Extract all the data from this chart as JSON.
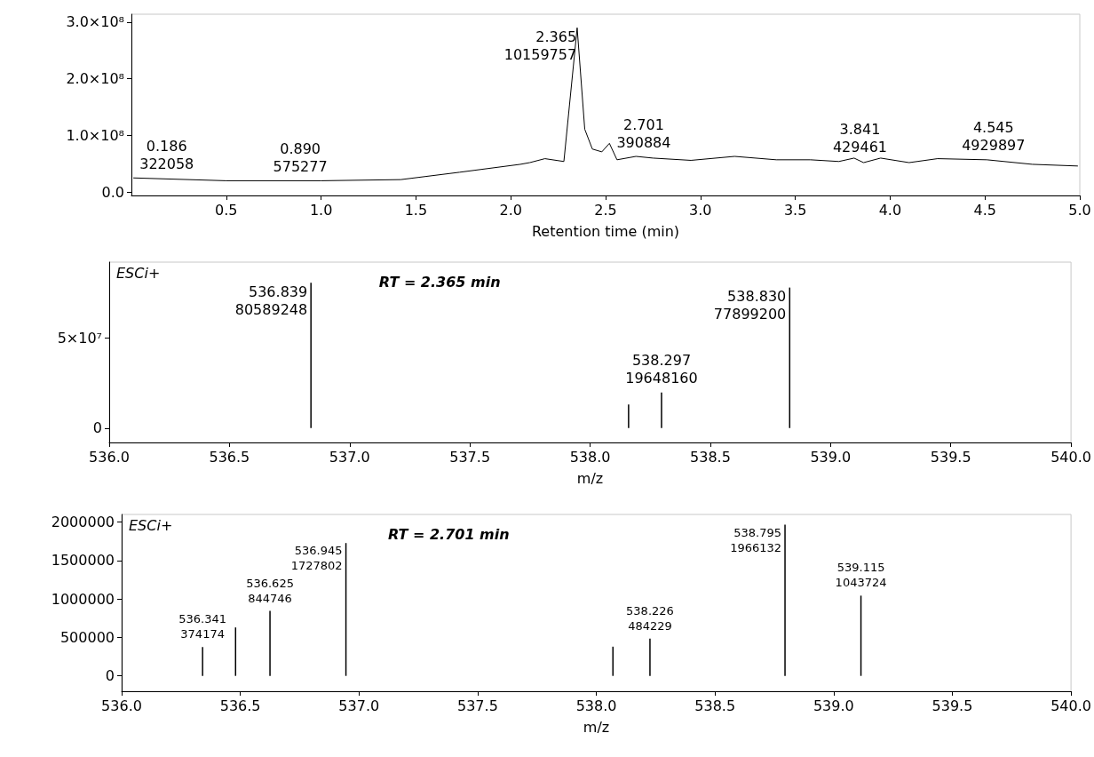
{
  "chart_data": [
    {
      "type": "line",
      "xlabel": "Retention time (min)",
      "color": "#000000",
      "marker": "none",
      "x": [
        0.01,
        0.5,
        1.0,
        1.42,
        1.73,
        2.05,
        2.1,
        2.18,
        2.28,
        2.35,
        2.39,
        2.43,
        2.48,
        2.52,
        2.56,
        2.66,
        2.75,
        2.95,
        3.18,
        3.4,
        3.58,
        3.73,
        3.81,
        3.86,
        3.95,
        4.1,
        4.25,
        4.51,
        4.75,
        4.99
      ],
      "values": [
        25000000,
        20000000,
        20000000,
        22000000,
        35000000,
        49000000,
        52000000,
        59000000,
        54000000,
        290000000,
        111000000,
        76000000,
        71000000,
        86000000,
        57000000,
        63000000,
        60000000,
        56000000,
        63000000,
        57000000,
        57000000,
        54000000,
        60000000,
        52000000,
        60000000,
        52000000,
        59000000,
        57000000,
        49000000,
        46000000
      ],
      "xlim": [
        0,
        5.0
      ],
      "xticks": [
        0.5,
        {
          "value": 1,
          "label": "1.0"
        },
        1.5,
        {
          "value": 2,
          "label": "2.0"
        },
        2.5,
        {
          "value": 3,
          "label": "3.0"
        },
        3.5,
        {
          "value": 4,
          "label": "4.0"
        },
        4.5,
        {
          "value": 5,
          "label": "5.0"
        }
      ],
      "ylim": [
        -6000000,
        314000000
      ],
      "yticks": [
        {
          "value": 0,
          "label": "0.0"
        },
        {
          "value": 100000000,
          "label": "1.0×10⁸"
        },
        {
          "value": 200000000,
          "label": "2.0×10⁸"
        },
        {
          "value": 300000000,
          "label": "3.0×10⁸"
        }
      ],
      "annotations": [
        {
          "text": "0.186\n322058",
          "x": 0.186,
          "y": 25000000
        },
        {
          "text": "0.890\n575277",
          "x": 0.89,
          "y": 20000000
        },
        {
          "text": "2.365\n10159757",
          "x": 2.365,
          "y": 290000000
        },
        {
          "text": "2.701\n390884",
          "x": 2.701,
          "y": 62000000
        },
        {
          "text": "3.841\n429461",
          "x": 3.841,
          "y": 54000000
        },
        {
          "text": "4.545\n4929897",
          "x": 4.545,
          "y": 57000000
        }
      ]
    },
    {
      "type": "bar",
      "xlabel": "m/z",
      "color": "#000000",
      "x": [
        536.839,
        538.16,
        538.297,
        538.83
      ],
      "values": [
        80589248,
        13000000,
        19648160,
        77899200
      ],
      "xlim": [
        536.0,
        540.0
      ],
      "xticks": [
        {
          "value": 536,
          "label": "536.0"
        },
        536.5,
        {
          "value": 537,
          "label": "537.0"
        },
        537.5,
        {
          "value": 538,
          "label": "538.0"
        },
        538.5,
        {
          "value": 539,
          "label": "539.0"
        },
        539.5,
        {
          "value": 540,
          "label": "540.0"
        }
      ],
      "ylim": [
        -8000000,
        92000000
      ],
      "yticks": [
        0,
        {
          "value": 50000000,
          "label": "5×10⁷"
        }
      ],
      "annotations": [
        "ESCi+",
        "RT = 2.365 min",
        {
          "text": "536.839\n80589248",
          "x": 536.839,
          "y": 80589248
        },
        {
          "text": "538.297\n19648160",
          "x": 538.297,
          "y": 19648160
        },
        {
          "text": "538.830\n77899200",
          "x": 538.83,
          "y": 77899200
        }
      ]
    },
    {
      "type": "bar",
      "xlabel": "m/z",
      "color": "#000000",
      "x": [
        536.341,
        536.48,
        536.625,
        536.945,
        538.07,
        538.226,
        538.795,
        539.115
      ],
      "values": [
        374174,
        630000,
        844746,
        1727802,
        380000,
        484229,
        1966132,
        1043724
      ],
      "xlim": [
        536.0,
        540.0
      ],
      "xticks": [
        {
          "value": 536,
          "label": "536.0"
        },
        536.5,
        {
          "value": 537,
          "label": "537.0"
        },
        537.5,
        {
          "value": 538,
          "label": "538.0"
        },
        538.5,
        {
          "value": 539,
          "label": "539.0"
        },
        539.5,
        {
          "value": 540,
          "label": "540.0"
        }
      ],
      "ylim": [
        -200000,
        2100000
      ],
      "yticks": [
        0,
        500000,
        1000000,
        1500000,
        2000000
      ],
      "annotations": [
        "ESCi+",
        "RT = 2.701 min",
        {
          "text": "536.341\n374174",
          "x": 536.341,
          "y": 374174
        },
        {
          "text": "536.625\n844746",
          "x": 536.625,
          "y": 844746
        },
        {
          "text": "536.945\n1727802",
          "x": 536.945,
          "y": 1727802
        },
        {
          "text": "538.226\n484229",
          "x": 538.226,
          "y": 484229
        },
        {
          "text": "538.795\n1966132",
          "x": 538.795,
          "y": 1966132
        },
        {
          "text": "539.115\n1043724",
          "x": 539.115,
          "y": 1043724
        }
      ]
    }
  ]
}
